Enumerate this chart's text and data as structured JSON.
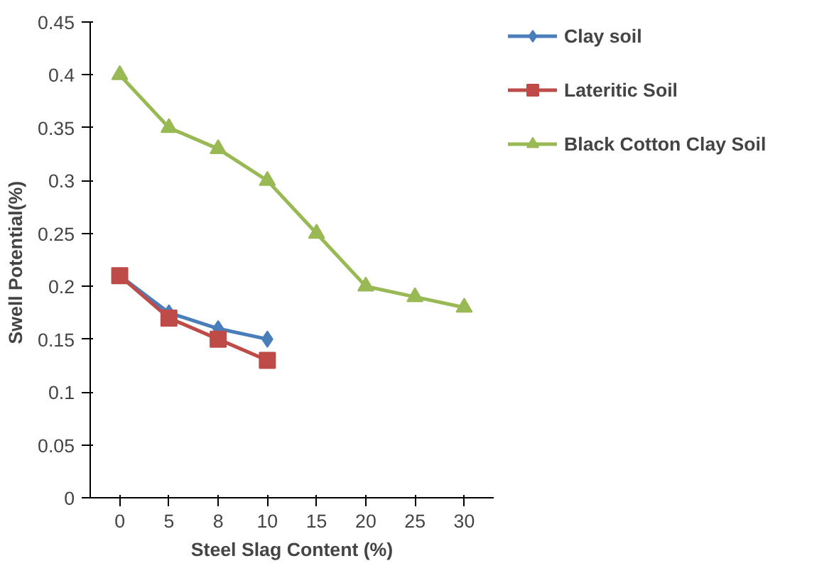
{
  "chart_data": {
    "type": "line",
    "xlabel": "Steel Slag Content (%)",
    "ylabel": "Swell  Potential(%)",
    "categories": [
      "0",
      "5",
      "8",
      "10",
      "15",
      "20",
      "25",
      "30"
    ],
    "ylim": [
      0,
      0.45
    ],
    "yticks": [
      0,
      0.05,
      0.1,
      0.15,
      0.2,
      0.25,
      0.3,
      0.35,
      0.4,
      0.45
    ],
    "grid": false,
    "legend": "right",
    "series": [
      {
        "name": "Clay soil",
        "color": "#4a7ebb",
        "marker": "diamond",
        "values": [
          0.21,
          0.175,
          0.16,
          0.15,
          null,
          null,
          null,
          null
        ]
      },
      {
        "name": "Lateritic Soil",
        "color": "#be4b48",
        "marker": "square",
        "values": [
          0.21,
          0.17,
          0.15,
          0.13,
          null,
          null,
          null,
          null
        ]
      },
      {
        "name": "Black Cotton Clay Soil",
        "color": "#98b954",
        "marker": "triangle",
        "values": [
          0.4,
          0.35,
          0.33,
          0.3,
          0.25,
          0.2,
          0.19,
          0.18
        ]
      }
    ]
  }
}
